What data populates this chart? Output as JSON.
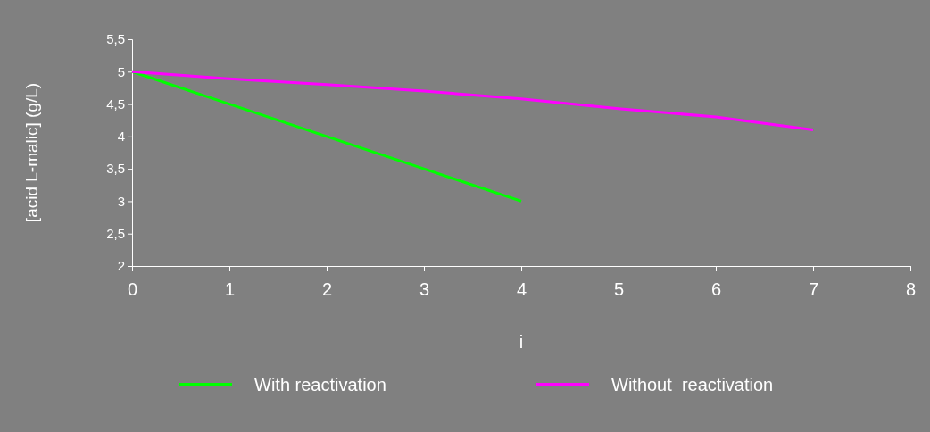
{
  "chart_data": {
    "type": "line",
    "xlabel": "i",
    "ylabel": "[acid L-malic] (g/L)",
    "xlim": [
      0,
      8
    ],
    "xticks": [
      0,
      1,
      2,
      3,
      4,
      5,
      6,
      7,
      8
    ],
    "ylim": [
      2,
      5.5
    ],
    "yticks": [
      {
        "value": 2,
        "label": "2"
      },
      {
        "value": 2.5,
        "label": "2,5"
      },
      {
        "value": 3,
        "label": "3"
      },
      {
        "value": 3.5,
        "label": "3,5"
      },
      {
        "value": 4,
        "label": "4"
      },
      {
        "value": 4.5,
        "label": "4,5"
      },
      {
        "value": 5,
        "label": "5"
      },
      {
        "value": 5.5,
        "label": "5,5"
      }
    ],
    "series": [
      {
        "name": "With reactivation",
        "color": "#00ff00",
        "x": [
          0,
          1,
          2,
          3,
          4
        ],
        "values": [
          5,
          4.5,
          4,
          3.5,
          3
        ]
      },
      {
        "name": "Without  reactivation",
        "color": "#ff00ff",
        "x": [
          0,
          1,
          2,
          3,
          4,
          5,
          6,
          7
        ],
        "values": [
          5,
          4.89,
          4.8,
          4.7,
          4.58,
          4.43,
          4.3,
          4.1
        ]
      }
    ],
    "grid": false,
    "legend": "bottom",
    "marker": "none",
    "line_style": "solid"
  }
}
